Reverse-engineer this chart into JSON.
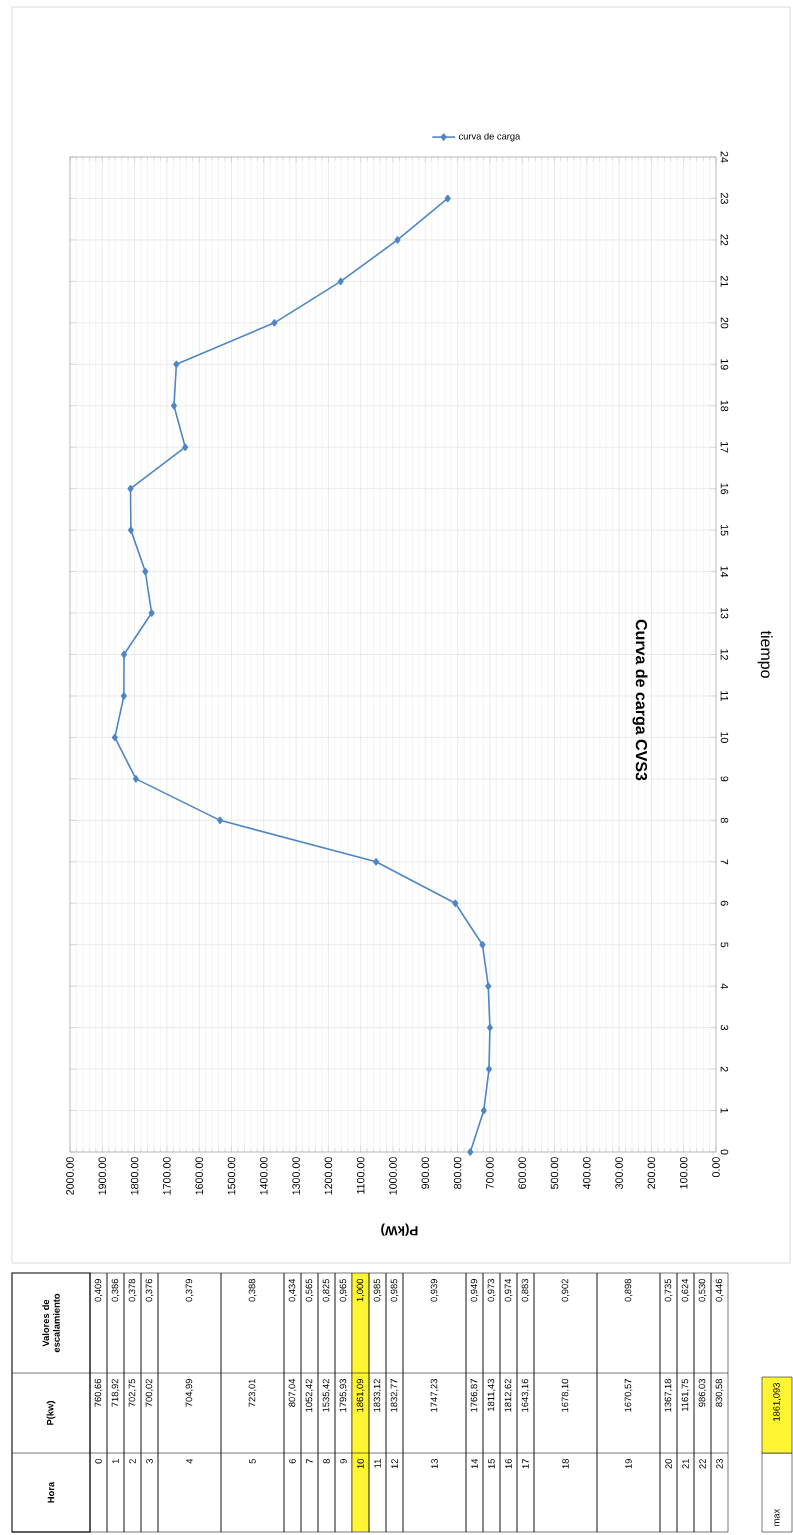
{
  "chart_data": [
    {
      "type": "line",
      "title": "Curva de carga CVS3",
      "xlabel": "P(kW)",
      "ylabel": "tiempo",
      "series": [
        {
          "name": "curva de carga",
          "color": "#4f86c6",
          "x": [
            760.66,
            718.92,
            702.75,
            700.02,
            704.99,
            723.01,
            807.04,
            1052.42,
            1535.42,
            1795.93,
            1861.09,
            1833.12,
            1832.77,
            1747.23,
            1766.87,
            1811.43,
            1812.62,
            1643.16,
            1678.1,
            1670.57,
            1367.18,
            1161.75,
            986.03,
            830.58
          ],
          "values": [
            0,
            1,
            2,
            3,
            4,
            5,
            6,
            7,
            8,
            9,
            10,
            11,
            12,
            13,
            14,
            15,
            16,
            17,
            18,
            19,
            20,
            21,
            22,
            23
          ]
        }
      ],
      "xlim": [
        2000,
        0
      ],
      "xticks": [
        {
          "value": 0,
          "label": "0.00"
        },
        {
          "value": 100,
          "label": "100.00"
        },
        {
          "value": 200,
          "label": "200.00"
        },
        {
          "value": 300,
          "label": "300.00"
        },
        {
          "value": 400,
          "label": "400.00"
        },
        {
          "value": 500,
          "label": "500.00"
        },
        {
          "value": 600,
          "label": "600.00"
        },
        {
          "value": 700,
          "label": "700.00"
        },
        {
          "value": 800,
          "label": "800.00"
        },
        {
          "value": 900,
          "label": "900.00"
        },
        {
          "value": 1000,
          "label": "1000.00"
        },
        {
          "value": 1100,
          "label": "1100.00"
        },
        {
          "value": 1200,
          "label": "1200.00"
        },
        {
          "value": 1300,
          "label": "1300.00"
        },
        {
          "value": 1400,
          "label": "1400.00"
        },
        {
          "value": 1500,
          "label": "1500.00"
        },
        {
          "value": 1600,
          "label": "1600.00"
        },
        {
          "value": 1700,
          "label": "1700.00"
        },
        {
          "value": 1800,
          "label": "1800.00"
        },
        {
          "value": 1900,
          "label": "1900.00"
        },
        {
          "value": 2000,
          "label": "2000.00"
        }
      ],
      "ylim": [
        0,
        24
      ],
      "yticks": [
        0,
        1,
        2,
        3,
        4,
        5,
        6,
        7,
        8,
        9,
        10,
        11,
        12,
        13,
        14,
        15,
        16,
        17,
        18,
        19,
        20,
        21,
        22,
        23,
        24
      ],
      "grid": true,
      "legend": "top",
      "marker": "diamond"
    },
    {
      "type": "other",
      "xlabel": "Hora",
      "categories": [
        "0",
        "1",
        "2",
        "3",
        "4",
        "5",
        "6",
        "7",
        "8",
        "9",
        "10",
        "11",
        "12",
        "13",
        "14",
        "15",
        "16",
        "17",
        "18",
        "19",
        "20",
        "21",
        "22",
        "23"
      ],
      "series": [
        {
          "values": [
            760.66,
            718.92,
            702.75,
            700.02,
            704.99,
            723.01,
            807.04,
            1052.42,
            1535.42,
            1795.93,
            1861.09,
            1833.12,
            1832.77,
            1747.23,
            1766.87,
            1811.43,
            1812.62,
            1643.16,
            1678.1,
            1670.57,
            1367.18,
            1161.75,
            986.03,
            830.58
          ],
          "value_labels": [
            "760,66",
            "718,92",
            "702,75",
            "700,02",
            "704,99",
            "723,01",
            "807,04",
            "1052,42",
            "1535,42",
            "1795,93",
            "1861,09",
            "1833,12",
            "1832,77",
            "1747,23",
            "1766,87",
            "1811,43",
            "1812,62",
            "1643,16",
            "1678,10",
            "1670,57",
            "1367,18",
            "1161,75",
            "986,03",
            "830,58"
          ]
        },
        {
          "values": [
            0.409,
            0.386,
            0.378,
            0.376,
            0.379,
            0.388,
            0.434,
            0.565,
            0.825,
            0.965,
            1.0,
            0.985,
            0.985,
            0.939,
            0.949,
            0.973,
            0.974,
            0.883,
            0.902,
            0.898,
            0.735,
            0.624,
            0.53,
            0.446
          ],
          "value_labels": [
            "0,409",
            "0,386",
            "0,378",
            "0,376",
            "0,379",
            "0,388",
            "0,434",
            "0,565",
            "0,825",
            "0,965",
            "1,000",
            "0,985",
            "0,985",
            "0,939",
            "0,949",
            "0,973",
            "0,974",
            "0,883",
            "0,902",
            "0,898",
            "0,735",
            "0,624",
            "0,530",
            "0,446"
          ]
        }
      ],
      "annotations": [
        "P(kw)",
        "Valores de escalamiento",
        "max",
        "1861,093"
      ]
    }
  ]
}
